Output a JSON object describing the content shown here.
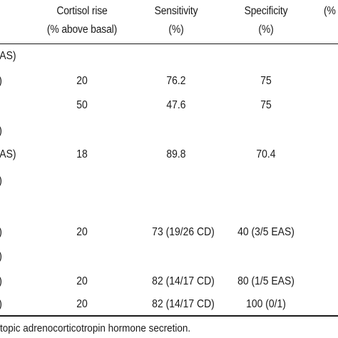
{
  "table": {
    "headers": [
      {
        "line1": "Cortisol rise",
        "line2": "(% above basal)"
      },
      {
        "line1": "Sensitivity",
        "line2": "(%)"
      },
      {
        "line1": "Specificity",
        "line2": "(%)"
      },
      {
        "line1": "(%",
        "line2": ""
      }
    ],
    "rows": [
      {
        "label": "AS)",
        "rise": "",
        "sens": "",
        "spec": ""
      },
      {
        "label": ")",
        "rise": "20",
        "sens": "76.2",
        "spec": "75"
      },
      {
        "label": "",
        "rise": "50",
        "sens": "47.6",
        "spec": "75"
      },
      {
        "label": ")",
        "rise": "",
        "sens": "",
        "spec": ""
      },
      {
        "label": "AS)",
        "rise": "18",
        "sens": "89.8",
        "spec": "70.4"
      },
      {
        "label": ")",
        "rise": "",
        "sens": "",
        "spec": ""
      },
      {
        "label": "",
        "rise": "",
        "sens": "",
        "spec": ""
      },
      {
        "label": ")",
        "rise": "20",
        "sens": "73 (19/26 CD)",
        "spec": "40 (3/5 EAS)"
      },
      {
        "label": ")",
        "rise": "",
        "sens": "",
        "spec": ""
      },
      {
        "label": ")",
        "rise": "20",
        "sens": "82 (14/17 CD)",
        "spec": "80 (1/5 EAS)"
      },
      {
        "label": ")",
        "rise": "20",
        "sens": "82 (14/17 CD)",
        "spec": "100 (0/1)"
      }
    ]
  },
  "footnote": "topic adrenocorticotropin hormone secretion."
}
